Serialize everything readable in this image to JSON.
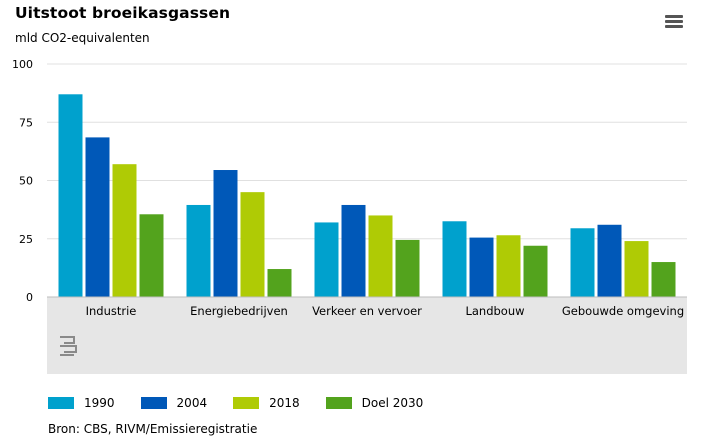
{
  "header": {
    "title": "Uitstoot broeikasgassen",
    "subtitle": "mld CO2-equivalenten"
  },
  "footer": {
    "source": "Bron: CBS, RIVM/Emissieregistratie"
  },
  "logo": {
    "label": "cbs"
  },
  "colors": {
    "background_band": "#e6e6e6",
    "gridline": "#e0e0e0"
  },
  "chart_data": {
    "type": "bar",
    "title": "Uitstoot broeikasgassen",
    "ylabel": "mld CO2-equivalenten",
    "xlabel": "",
    "ylim": [
      0,
      100
    ],
    "yticks": [
      0,
      25,
      50,
      75,
      100
    ],
    "grid": true,
    "legend_position": "bottom-left",
    "categories": [
      "Industrie",
      "Energiebedrijven",
      "Verkeer en vervoer",
      "Landbouw",
      "Gebouwde omgeving"
    ],
    "series": [
      {
        "name": "1990",
        "color": "#00a1cd",
        "values": [
          87,
          39.5,
          32,
          32.5,
          29.5
        ]
      },
      {
        "name": "2004",
        "color": "#0058b8",
        "values": [
          68.5,
          54.5,
          39.5,
          25.5,
          31
        ]
      },
      {
        "name": "2018",
        "color": "#afcb05",
        "values": [
          57,
          45,
          35,
          26.5,
          24
        ]
      },
      {
        "name": "Doel 2030",
        "color": "#53a31d",
        "values": [
          35.5,
          12,
          24.5,
          22,
          15
        ]
      }
    ]
  }
}
